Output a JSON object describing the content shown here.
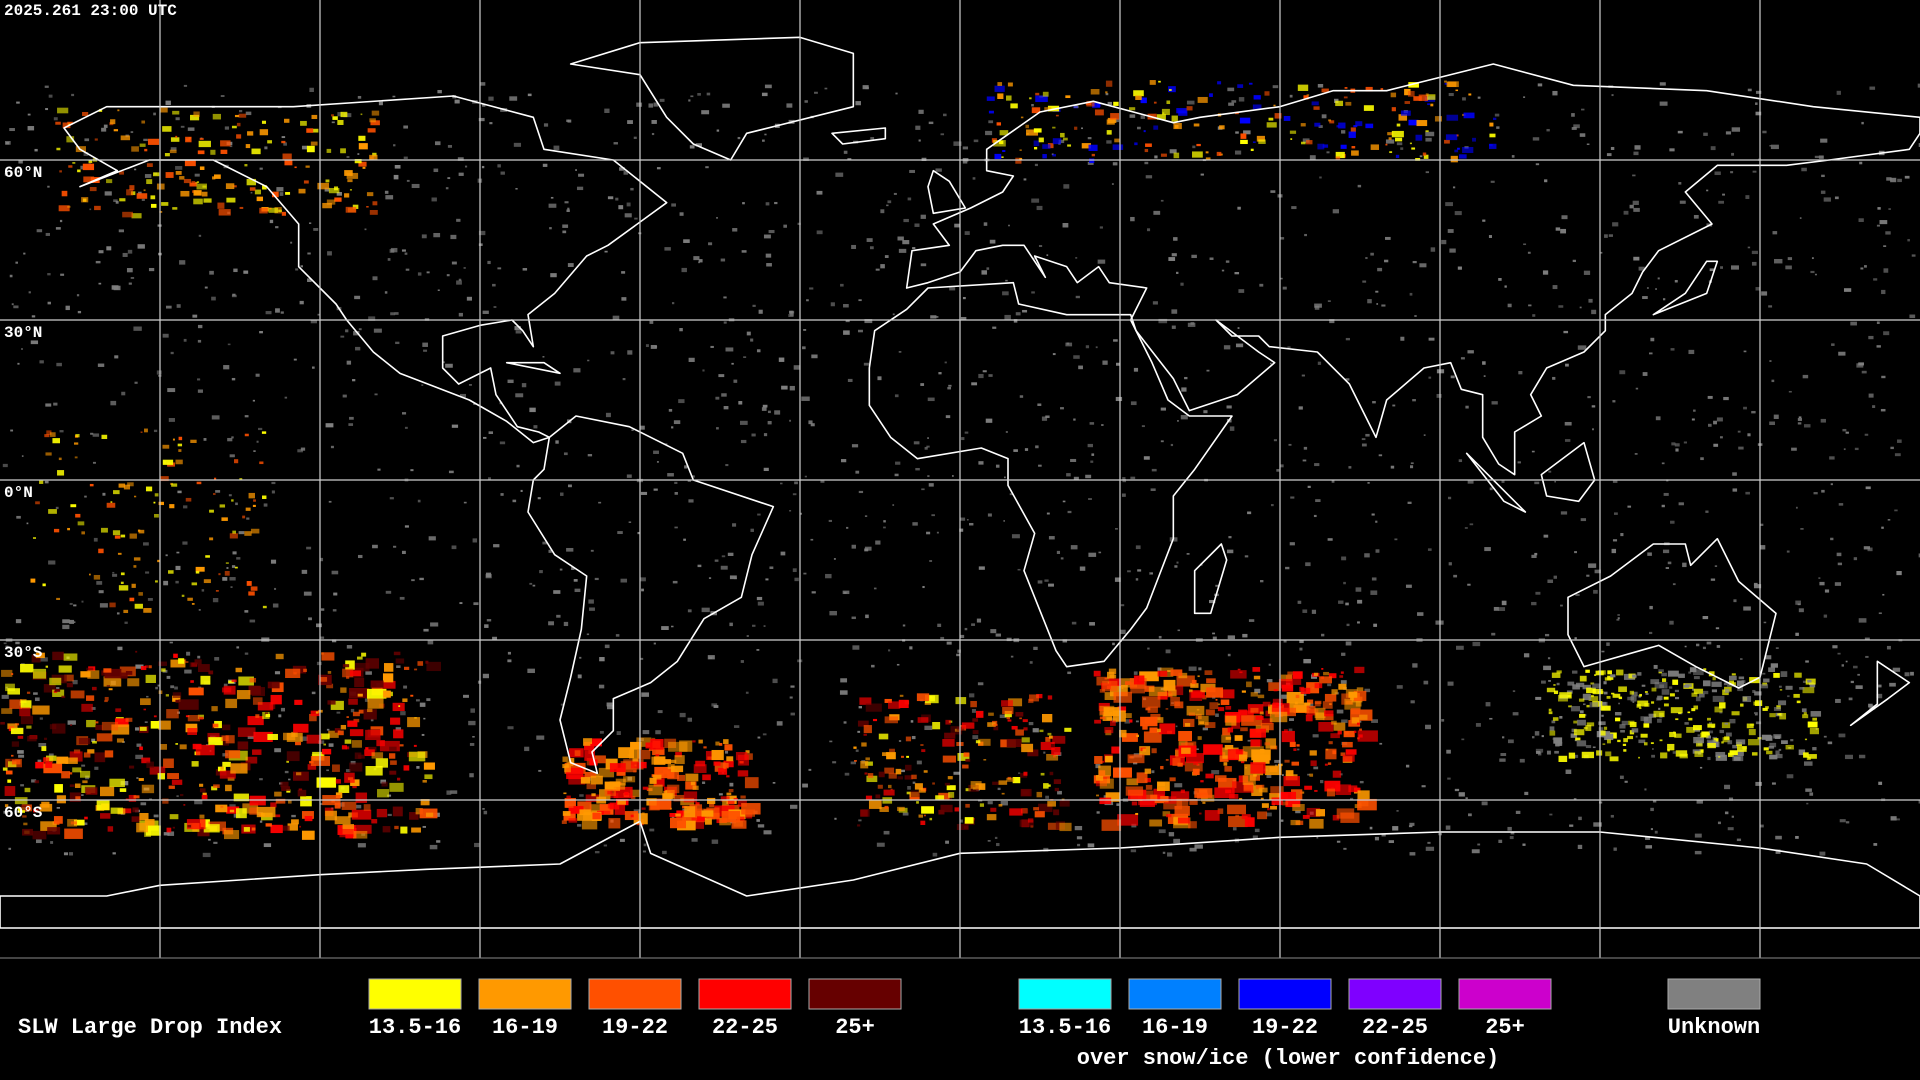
{
  "timestamp": "2025.261 23:00 UTC",
  "latitude_labels": [
    "60°N",
    "30°N",
    "0°N",
    "30°S",
    "60°S"
  ],
  "legend": {
    "title": "SLW Large Drop Index",
    "groups": [
      {
        "items": [
          {
            "label": "13.5-16",
            "color": "#ffff00"
          },
          {
            "label": "16-19",
            "color": "#ff9900"
          },
          {
            "label": "19-22",
            "color": "#ff5000"
          },
          {
            "label": "22-25",
            "color": "#ff0000"
          },
          {
            "label": "25+",
            "color": "#660000"
          }
        ]
      },
      {
        "items": [
          {
            "label": "13.5-16",
            "color": "#00ffff"
          },
          {
            "label": "16-19",
            "color": "#0080ff"
          },
          {
            "label": "19-22",
            "color": "#0000ff"
          },
          {
            "label": "22-25",
            "color": "#7f00ff"
          },
          {
            "label": "25+",
            "color": "#cc00cc"
          }
        ],
        "caption": "over snow/ice (lower confidence)"
      }
    ],
    "unknown": {
      "label": "Unknown",
      "color": "#808080"
    }
  }
}
